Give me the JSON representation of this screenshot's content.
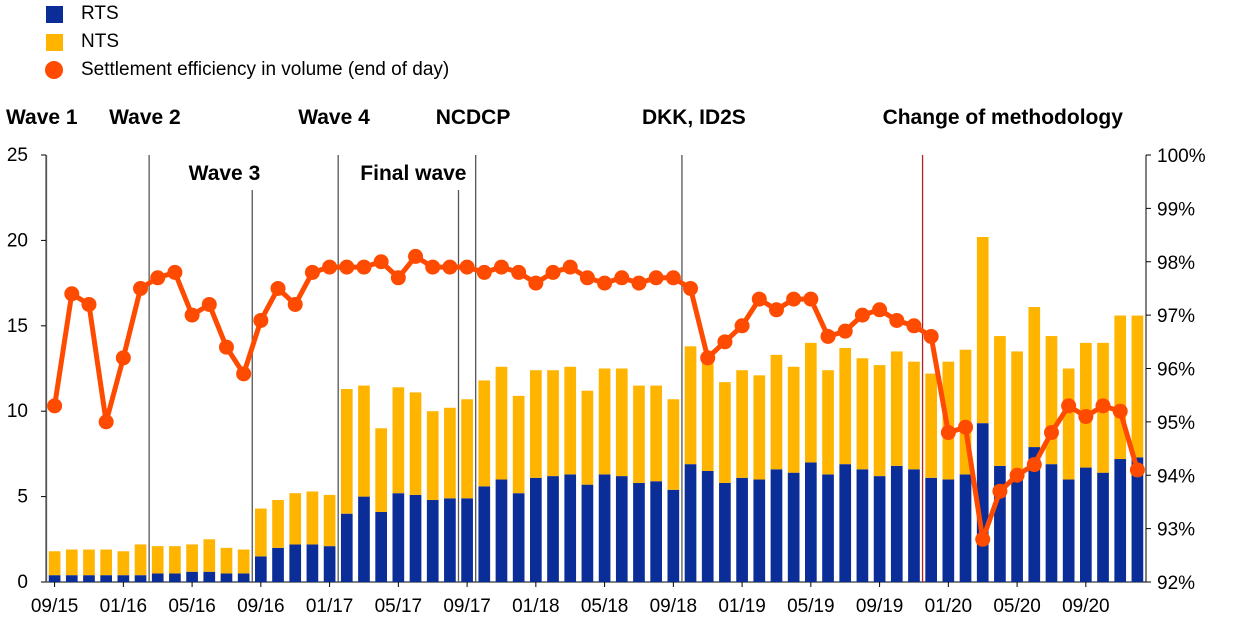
{
  "chart_data": {
    "type": "bar",
    "categories": [
      "09/15",
      "10/15",
      "11/15",
      "12/15",
      "01/16",
      "02/16",
      "03/16",
      "04/16",
      "05/16",
      "06/16",
      "07/16",
      "08/16",
      "09/16",
      "10/16",
      "11/16",
      "12/16",
      "01/17",
      "02/17",
      "03/17",
      "04/17",
      "05/17",
      "06/17",
      "07/17",
      "08/17",
      "09/17",
      "10/17",
      "11/17",
      "12/17",
      "01/18",
      "02/18",
      "03/18",
      "04/18",
      "05/18",
      "06/18",
      "07/18",
      "08/18",
      "09/18",
      "10/18",
      "11/18",
      "12/18",
      "01/19",
      "02/19",
      "03/19",
      "04/19",
      "05/19",
      "06/19",
      "07/19",
      "08/19",
      "09/19",
      "10/19",
      "11/19",
      "12/19",
      "01/20",
      "02/20",
      "03/20",
      "04/20",
      "05/20",
      "06/20",
      "07/20",
      "08/20",
      "09/20",
      "10/20",
      "11/20",
      "12/20"
    ],
    "x_tick_labels": [
      "09/15",
      "01/16",
      "05/16",
      "09/16",
      "01/17",
      "05/17",
      "09/17",
      "01/18",
      "05/18",
      "09/18",
      "01/19",
      "05/19",
      "09/19",
      "01/20",
      "05/20",
      "09/20"
    ],
    "series": [
      {
        "name": "RTS",
        "color": "#0b2d97",
        "axis": "left",
        "stack": "bars",
        "values": [
          0.4,
          0.4,
          0.4,
          0.4,
          0.4,
          0.4,
          0.5,
          0.5,
          0.6,
          0.6,
          0.5,
          0.5,
          1.5,
          2.0,
          2.2,
          2.2,
          2.1,
          4.0,
          5.0,
          4.1,
          5.2,
          5.1,
          4.8,
          4.9,
          4.9,
          5.6,
          6.0,
          5.2,
          6.1,
          6.2,
          6.3,
          5.7,
          6.3,
          6.2,
          5.8,
          5.9,
          5.4,
          6.9,
          6.5,
          5.8,
          6.1,
          6.0,
          6.6,
          6.4,
          7.0,
          6.3,
          6.9,
          6.6,
          6.2,
          6.8,
          6.6,
          6.1,
          6.0,
          6.3,
          9.3,
          6.8,
          6.2,
          7.9,
          6.9,
          6.0,
          6.7,
          6.4,
          7.2,
          7.3
        ]
      },
      {
        "name": "NTS",
        "color": "#ffb400",
        "axis": "left",
        "stack": "bars",
        "values": [
          1.4,
          1.5,
          1.5,
          1.5,
          1.4,
          1.8,
          1.6,
          1.6,
          1.6,
          1.9,
          1.5,
          1.4,
          2.8,
          2.8,
          3.0,
          3.1,
          3.0,
          7.3,
          6.5,
          4.9,
          6.2,
          6.0,
          5.2,
          5.3,
          5.8,
          6.2,
          6.6,
          5.7,
          6.3,
          6.2,
          6.3,
          5.5,
          6.2,
          6.3,
          5.7,
          5.6,
          5.3,
          6.9,
          6.7,
          5.9,
          6.3,
          6.1,
          6.7,
          6.2,
          7.0,
          6.1,
          6.8,
          6.5,
          6.5,
          6.7,
          6.3,
          6.1,
          6.9,
          7.3,
          10.9,
          7.6,
          7.3,
          8.2,
          7.5,
          6.5,
          7.3,
          7.6,
          8.4,
          8.3
        ]
      },
      {
        "name": "Settlement efficiency in volume (end of day)",
        "color": "#ff4b00",
        "axis": "right",
        "type": "line",
        "values": [
          95.3,
          97.4,
          97.2,
          95.0,
          96.2,
          97.5,
          97.7,
          97.8,
          97.0,
          97.2,
          96.4,
          95.9,
          96.9,
          97.5,
          97.2,
          97.8,
          97.9,
          97.9,
          97.9,
          98.0,
          97.7,
          98.1,
          97.9,
          97.9,
          97.9,
          97.8,
          97.9,
          97.8,
          97.6,
          97.8,
          97.9,
          97.7,
          97.6,
          97.7,
          97.6,
          97.7,
          97.7,
          97.5,
          96.2,
          96.5,
          96.8,
          97.3,
          97.1,
          97.3,
          97.3,
          96.6,
          96.7,
          97.0,
          97.1,
          96.9,
          96.8,
          96.6,
          94.8,
          94.9,
          92.8,
          93.7,
          94.0,
          94.2,
          94.8,
          95.3,
          95.1,
          95.3,
          95.2,
          94.1
        ]
      }
    ],
    "y_left": {
      "ylim": [
        0,
        25
      ],
      "ticks": [
        0,
        5,
        10,
        15,
        20,
        25
      ],
      "tick_labels": [
        "0",
        "5",
        "10",
        "15",
        "20",
        "25"
      ]
    },
    "y_right": {
      "ylim": [
        92,
        100
      ],
      "ticks": [
        92,
        93,
        94,
        95,
        96,
        97,
        98,
        99,
        100
      ],
      "tick_labels": [
        "92%",
        "93%",
        "94%",
        "95%",
        "96%",
        "97%",
        "98%",
        "99%",
        "100%"
      ]
    },
    "events": [
      {
        "label": "Wave 1",
        "at": "09/15",
        "row": "top",
        "line_color": "#555555"
      },
      {
        "label": "Wave 2",
        "at": "03/16",
        "row": "top",
        "line_color": "#555555"
      },
      {
        "label": "Wave 3",
        "at": "09/16",
        "row": "lower",
        "line_color": "#555555"
      },
      {
        "label": "Wave 4",
        "at": "02/17",
        "row": "top",
        "line_color": "#555555"
      },
      {
        "label": "Final wave",
        "at": "09/17",
        "row": "lower",
        "line_color": "#555555"
      },
      {
        "label": "NCDCP",
        "at": "10/17",
        "row": "top",
        "line_color": "#555555"
      },
      {
        "label": "DKK, ID2S",
        "at": "10/18",
        "row": "top",
        "line_color": "#555555"
      },
      {
        "label": "Change of methodology",
        "at": "12/19",
        "row": "top",
        "line_color": "#b22222"
      }
    ],
    "legend_position": "top-left",
    "grid": false
  }
}
